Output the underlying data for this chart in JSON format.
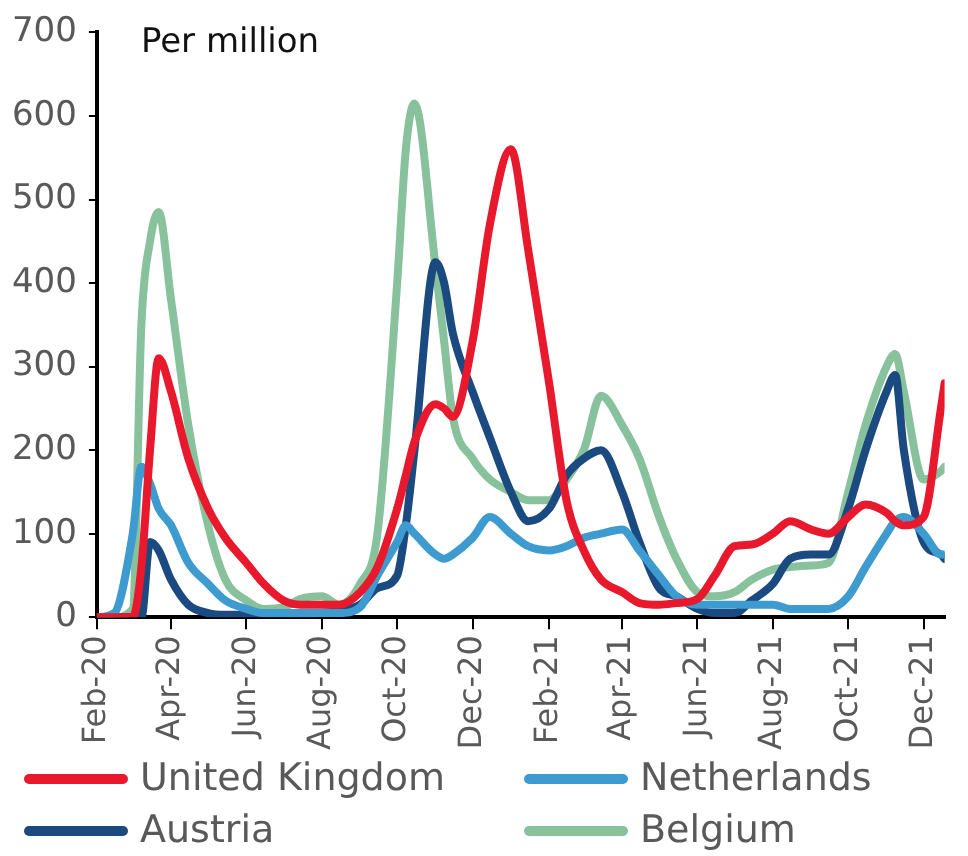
{
  "chart_data": {
    "type": "line",
    "ylabel": "Per million",
    "legend": "bottom",
    "x": [
      "2020-02-01",
      "2020-02-15",
      "2020-03-01",
      "2020-03-08",
      "2020-03-15",
      "2020-03-22",
      "2020-04-01",
      "2020-04-15",
      "2020-05-01",
      "2020-05-15",
      "2020-06-01",
      "2020-06-15",
      "2020-07-01",
      "2020-07-15",
      "2020-08-01",
      "2020-08-15",
      "2020-09-01",
      "2020-09-15",
      "2020-10-01",
      "2020-10-08",
      "2020-10-15",
      "2020-11-01",
      "2020-11-08",
      "2020-11-15",
      "2020-12-01",
      "2020-12-15",
      "2021-01-01",
      "2021-01-15",
      "2021-02-01",
      "2021-02-15",
      "2021-03-01",
      "2021-03-15",
      "2021-04-01",
      "2021-04-15",
      "2021-05-01",
      "2021-05-15",
      "2021-06-01",
      "2021-06-15",
      "2021-07-01",
      "2021-07-15",
      "2021-08-01",
      "2021-08-15",
      "2021-09-01",
      "2021-09-15",
      "2021-10-01",
      "2021-10-15",
      "2021-11-01",
      "2021-11-08",
      "2021-11-15",
      "2021-12-01",
      "2021-12-15",
      "2021-12-18"
    ],
    "series": [
      {
        "name": "United Kingdom",
        "color": "#e8192c",
        "values": [
          0,
          0,
          0,
          60,
          200,
          310,
          270,
          190,
          130,
          95,
          65,
          40,
          20,
          15,
          15,
          15,
          30,
          60,
          130,
          170,
          210,
          255,
          250,
          240,
          330,
          470,
          560,
          440,
          280,
          140,
          80,
          45,
          30,
          17,
          15,
          17,
          22,
          50,
          85,
          87,
          100,
          115,
          105,
          100,
          120,
          135,
          125,
          115,
          110,
          120,
          250,
          280
        ]
      },
      {
        "name": "Netherlands",
        "color": "#3d9bd0",
        "values": [
          0,
          5,
          100,
          180,
          160,
          130,
          110,
          65,
          40,
          20,
          10,
          5,
          5,
          5,
          5,
          5,
          12,
          50,
          90,
          110,
          100,
          75,
          70,
          75,
          95,
          120,
          100,
          85,
          80,
          85,
          95,
          100,
          105,
          80,
          50,
          25,
          15,
          15,
          15,
          15,
          15,
          10,
          10,
          10,
          25,
          60,
          100,
          115,
          120,
          100,
          75,
          75
        ]
      },
      {
        "name": "Austria",
        "color": "#1a4a7f",
        "values": [
          0,
          0,
          0,
          0,
          90,
          80,
          45,
          15,
          5,
          3,
          3,
          3,
          3,
          3,
          5,
          8,
          15,
          35,
          50,
          110,
          200,
          425,
          400,
          340,
          270,
          215,
          150,
          115,
          130,
          170,
          190,
          200,
          150,
          90,
          35,
          25,
          10,
          5,
          5,
          20,
          40,
          70,
          75,
          75,
          130,
          200,
          270,
          290,
          200,
          90,
          75,
          70
        ]
      },
      {
        "name": "Belgium",
        "color": "#88c29c",
        "values": [
          0,
          0,
          10,
          350,
          450,
          485,
          380,
          230,
          110,
          45,
          20,
          10,
          12,
          22,
          25,
          15,
          40,
          100,
          400,
          560,
          615,
          420,
          330,
          240,
          190,
          165,
          150,
          140,
          140,
          165,
          200,
          265,
          230,
          190,
          120,
          70,
          30,
          25,
          30,
          45,
          57,
          60,
          62,
          65,
          150,
          230,
          300,
          315,
          270,
          165,
          175,
          180
        ]
      }
    ],
    "xlim": [
      "2020-02-01",
      "2021-12-18"
    ],
    "xticks": [
      {
        "value": "2020-02-01",
        "label": "Feb-20"
      },
      {
        "value": "2020-04-01",
        "label": "Apr-20"
      },
      {
        "value": "2020-06-01",
        "label": "Jun-20"
      },
      {
        "value": "2020-08-01",
        "label": "Aug-20"
      },
      {
        "value": "2020-10-01",
        "label": "Oct-20"
      },
      {
        "value": "2020-12-01",
        "label": "Dec-20"
      },
      {
        "value": "2021-02-01",
        "label": "Feb-21"
      },
      {
        "value": "2021-04-01",
        "label": "Apr-21"
      },
      {
        "value": "2021-06-01",
        "label": "Jun-21"
      },
      {
        "value": "2021-08-01",
        "label": "Aug-21"
      },
      {
        "value": "2021-10-01",
        "label": "Oct-21"
      },
      {
        "value": "2021-12-01",
        "label": "Dec-21"
      }
    ],
    "ylim": [
      0,
      700
    ],
    "yticks": [
      0,
      100,
      200,
      300,
      400,
      500,
      600,
      700
    ],
    "grid": false,
    "marker": "none",
    "line_style": "solid"
  }
}
